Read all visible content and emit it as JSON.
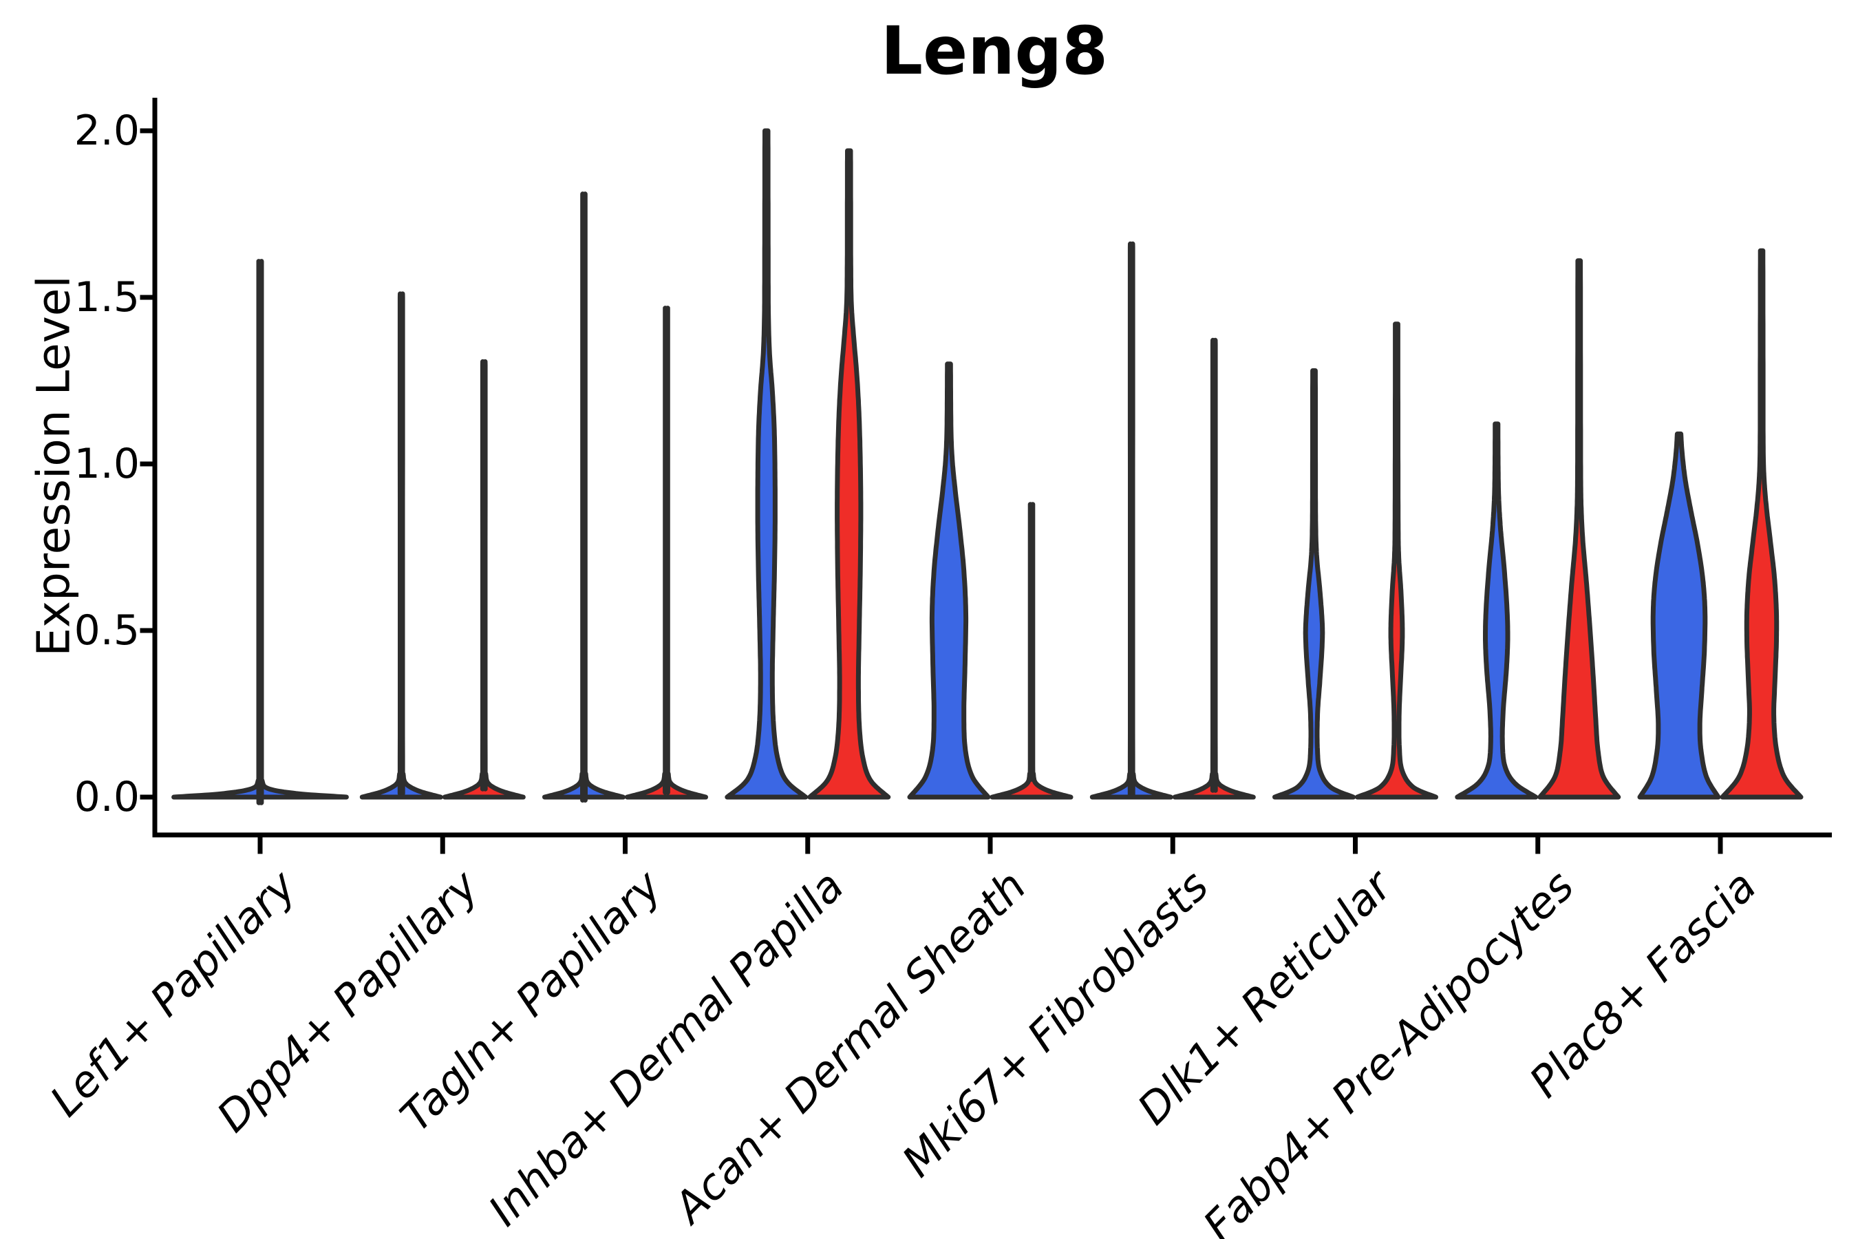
{
  "chart_data": {
    "type": "violin",
    "title": "Leng8",
    "ylabel": "Expression Level",
    "xlabel": "",
    "ylim": [
      0,
      2.1
    ],
    "grid": "off",
    "legend": "none",
    "yticks": [
      0.0,
      0.5,
      1.0,
      1.5,
      2.0
    ],
    "ytick_labels": [
      "0.0",
      "0.5",
      "1.0",
      "1.5",
      "2.0"
    ],
    "categories": [
      "Lef1+ Papillary",
      "Dpp4+ Papillary",
      "Tagln+ Papillary",
      "Inhba+ Dermal Papilla",
      "Acan+ Dermal Sheath",
      "Mki67+ Fibroblasts",
      "Dlk1+ Reticular",
      "Fabp4+ Pre-Adipocytes",
      "Plac8+ Fascia"
    ],
    "palette": {
      "blue": "#3B67E4",
      "red": "#EF2D28",
      "outline": "#2E2E2E",
      "axis": "#000000"
    },
    "groups": [
      {
        "category": "Lef1+ Papillary",
        "violins": [
          {
            "color": "blue",
            "position": "center",
            "max": 1.54,
            "width_scale": 2.2,
            "profile": [
              [
                0,
                1.0
              ],
              [
                0.01,
                0.45
              ],
              [
                0.025,
                0.1
              ],
              [
                0.05,
                0.022
              ],
              [
                0.1,
                0.016
              ],
              [
                1.49,
                0.016
              ],
              [
                1.54,
                0.015
              ]
            ]
          }
        ]
      },
      {
        "category": "Dpp4+ Papillary",
        "violins": [
          {
            "color": "blue",
            "position": "left",
            "max": 1.45,
            "width_scale": 1,
            "profile": [
              [
                0,
                1.0
              ],
              [
                0.018,
                0.45
              ],
              [
                0.04,
                0.12
              ],
              [
                0.07,
                0.045
              ],
              [
                0.12,
                0.032
              ],
              [
                1.4,
                0.032
              ],
              [
                1.45,
                0.03
              ]
            ]
          },
          {
            "color": "red",
            "position": "right",
            "max": 1.26,
            "width_scale": 1,
            "profile": [
              [
                0,
                1.0
              ],
              [
                0.018,
                0.45
              ],
              [
                0.04,
                0.12
              ],
              [
                0.07,
                0.045
              ],
              [
                0.12,
                0.032
              ],
              [
                1.21,
                0.032
              ],
              [
                1.26,
                0.03
              ]
            ]
          }
        ]
      },
      {
        "category": "Tagln+ Papillary",
        "violins": [
          {
            "color": "blue",
            "position": "left",
            "max": 1.73,
            "width_scale": 1,
            "profile": [
              [
                0,
                1.0
              ],
              [
                0.018,
                0.45
              ],
              [
                0.04,
                0.12
              ],
              [
                0.07,
                0.045
              ],
              [
                0.12,
                0.032
              ],
              [
                1.68,
                0.032
              ],
              [
                1.73,
                0.03
              ]
            ]
          },
          {
            "color": "red",
            "position": "right",
            "max": 1.41,
            "width_scale": 1,
            "profile": [
              [
                0,
                1.0
              ],
              [
                0.018,
                0.45
              ],
              [
                0.04,
                0.12
              ],
              [
                0.07,
                0.045
              ],
              [
                0.12,
                0.032
              ],
              [
                1.36,
                0.032
              ],
              [
                1.41,
                0.03
              ]
            ]
          }
        ]
      },
      {
        "category": "Inhba+ Dermal Papilla",
        "violins": [
          {
            "color": "blue",
            "position": "left",
            "max": 2.0,
            "width_scale": 1,
            "profile": [
              [
                0,
                1.0
              ],
              [
                0.05,
                0.5
              ],
              [
                0.12,
                0.28
              ],
              [
                0.22,
                0.18
              ],
              [
                0.35,
                0.15
              ],
              [
                0.5,
                0.17
              ],
              [
                0.65,
                0.2
              ],
              [
                0.8,
                0.22
              ],
              [
                0.95,
                0.22
              ],
              [
                1.1,
                0.2
              ],
              [
                1.22,
                0.15
              ],
              [
                1.33,
                0.08
              ],
              [
                1.45,
                0.05
              ],
              [
                1.6,
                0.045
              ],
              [
                1.8,
                0.042
              ],
              [
                2.0,
                0.04
              ]
            ]
          },
          {
            "color": "red",
            "position": "right",
            "max": 1.94,
            "width_scale": 1,
            "profile": [
              [
                0,
                1.0
              ],
              [
                0.05,
                0.55
              ],
              [
                0.12,
                0.35
              ],
              [
                0.22,
                0.26
              ],
              [
                0.35,
                0.24
              ],
              [
                0.5,
                0.26
              ],
              [
                0.7,
                0.29
              ],
              [
                0.9,
                0.3
              ],
              [
                1.1,
                0.27
              ],
              [
                1.25,
                0.21
              ],
              [
                1.38,
                0.12
              ],
              [
                1.48,
                0.06
              ],
              [
                1.6,
                0.045
              ],
              [
                1.8,
                0.042
              ],
              [
                1.94,
                0.04
              ]
            ]
          }
        ]
      },
      {
        "category": "Acan+ Dermal Sheath",
        "violins": [
          {
            "color": "blue",
            "position": "left",
            "max": 1.3,
            "width_scale": 1,
            "profile": [
              [
                0,
                1.0
              ],
              [
                0.06,
                0.6
              ],
              [
                0.14,
                0.42
              ],
              [
                0.25,
                0.38
              ],
              [
                0.4,
                0.41
              ],
              [
                0.55,
                0.43
              ],
              [
                0.68,
                0.38
              ],
              [
                0.8,
                0.28
              ],
              [
                0.92,
                0.16
              ],
              [
                1.02,
                0.08
              ],
              [
                1.12,
                0.05
              ],
              [
                1.3,
                0.04
              ]
            ]
          },
          {
            "color": "red",
            "position": "right",
            "max": 0.86,
            "width_scale": 1,
            "profile": [
              [
                0,
                1.0
              ],
              [
                0.018,
                0.45
              ],
              [
                0.04,
                0.12
              ],
              [
                0.07,
                0.045
              ],
              [
                0.12,
                0.032
              ],
              [
                0.81,
                0.032
              ],
              [
                0.86,
                0.03
              ]
            ]
          }
        ]
      },
      {
        "category": "Mki67+ Fibroblasts",
        "violins": [
          {
            "color": "blue",
            "position": "left",
            "max": 1.59,
            "width_scale": 1,
            "profile": [
              [
                0,
                1.0
              ],
              [
                0.018,
                0.45
              ],
              [
                0.04,
                0.12
              ],
              [
                0.07,
                0.045
              ],
              [
                0.12,
                0.032
              ],
              [
                1.54,
                0.032
              ],
              [
                1.59,
                0.03
              ]
            ]
          },
          {
            "color": "red",
            "position": "right",
            "max": 1.32,
            "width_scale": 1,
            "profile": [
              [
                0,
                1.0
              ],
              [
                0.018,
                0.45
              ],
              [
                0.04,
                0.12
              ],
              [
                0.07,
                0.045
              ],
              [
                0.12,
                0.032
              ],
              [
                1.27,
                0.032
              ],
              [
                1.32,
                0.03
              ]
            ]
          }
        ]
      },
      {
        "category": "Dlk1+ Reticular",
        "violins": [
          {
            "color": "blue",
            "position": "left",
            "max": 1.28,
            "width_scale": 1,
            "profile": [
              [
                0,
                1.0
              ],
              [
                0.03,
                0.42
              ],
              [
                0.08,
                0.15
              ],
              [
                0.15,
                0.085
              ],
              [
                0.25,
                0.09
              ],
              [
                0.35,
                0.15
              ],
              [
                0.45,
                0.205
              ],
              [
                0.52,
                0.21
              ],
              [
                0.62,
                0.15
              ],
              [
                0.72,
                0.07
              ],
              [
                0.82,
                0.042
              ],
              [
                1.0,
                0.036
              ],
              [
                1.28,
                0.034
              ]
            ]
          },
          {
            "color": "red",
            "position": "right",
            "max": 1.42,
            "width_scale": 1,
            "profile": [
              [
                0,
                1.0
              ],
              [
                0.03,
                0.42
              ],
              [
                0.08,
                0.14
              ],
              [
                0.15,
                0.07
              ],
              [
                0.25,
                0.065
              ],
              [
                0.35,
                0.1
              ],
              [
                0.45,
                0.14
              ],
              [
                0.52,
                0.145
              ],
              [
                0.62,
                0.11
              ],
              [
                0.72,
                0.055
              ],
              [
                0.82,
                0.04
              ],
              [
                1.1,
                0.035
              ],
              [
                1.42,
                0.033
              ]
            ]
          }
        ]
      },
      {
        "category": "Fabp4+ Pre-Adipocytes",
        "violins": [
          {
            "color": "blue",
            "position": "left",
            "max": 1.12,
            "width_scale": 1,
            "profile": [
              [
                0,
                1.0
              ],
              [
                0.04,
                0.48
              ],
              [
                0.09,
                0.22
              ],
              [
                0.16,
                0.15
              ],
              [
                0.26,
                0.17
              ],
              [
                0.38,
                0.25
              ],
              [
                0.48,
                0.285
              ],
              [
                0.58,
                0.26
              ],
              [
                0.7,
                0.185
              ],
              [
                0.8,
                0.105
              ],
              [
                0.9,
                0.055
              ],
              [
                1.0,
                0.04
              ],
              [
                1.12,
                0.036
              ]
            ]
          },
          {
            "color": "red",
            "position": "right",
            "max": 1.61,
            "width_scale": 1,
            "profile": [
              [
                0,
                1.0
              ],
              [
                0.06,
                0.62
              ],
              [
                0.14,
                0.48
              ],
              [
                0.24,
                0.42
              ],
              [
                0.36,
                0.36
              ],
              [
                0.5,
                0.28
              ],
              [
                0.64,
                0.19
              ],
              [
                0.76,
                0.1
              ],
              [
                0.86,
                0.055
              ],
              [
                0.96,
                0.04
              ],
              [
                1.2,
                0.036
              ],
              [
                1.61,
                0.033
              ]
            ]
          }
        ]
      },
      {
        "category": "Plac8+ Fascia",
        "violins": [
          {
            "color": "blue",
            "position": "left",
            "max": 1.09,
            "width_scale": 1,
            "profile": [
              [
                0,
                1.0
              ],
              [
                0.06,
                0.7
              ],
              [
                0.14,
                0.56
              ],
              [
                0.22,
                0.53
              ],
              [
                0.32,
                0.58
              ],
              [
                0.44,
                0.645
              ],
              [
                0.56,
                0.66
              ],
              [
                0.66,
                0.6
              ],
              [
                0.76,
                0.47
              ],
              [
                0.86,
                0.3
              ],
              [
                0.95,
                0.16
              ],
              [
                1.03,
                0.08
              ],
              [
                1.09,
                0.045
              ]
            ]
          },
          {
            "color": "red",
            "position": "right",
            "max": 1.64,
            "width_scale": 1,
            "profile": [
              [
                0,
                1.0
              ],
              [
                0.06,
                0.58
              ],
              [
                0.14,
                0.38
              ],
              [
                0.24,
                0.31
              ],
              [
                0.34,
                0.335
              ],
              [
                0.46,
                0.375
              ],
              [
                0.56,
                0.375
              ],
              [
                0.66,
                0.325
              ],
              [
                0.76,
                0.23
              ],
              [
                0.86,
                0.13
              ],
              [
                0.95,
                0.065
              ],
              [
                1.05,
                0.04
              ],
              [
                1.3,
                0.036
              ],
              [
                1.64,
                0.032
              ]
            ]
          }
        ]
      }
    ]
  }
}
